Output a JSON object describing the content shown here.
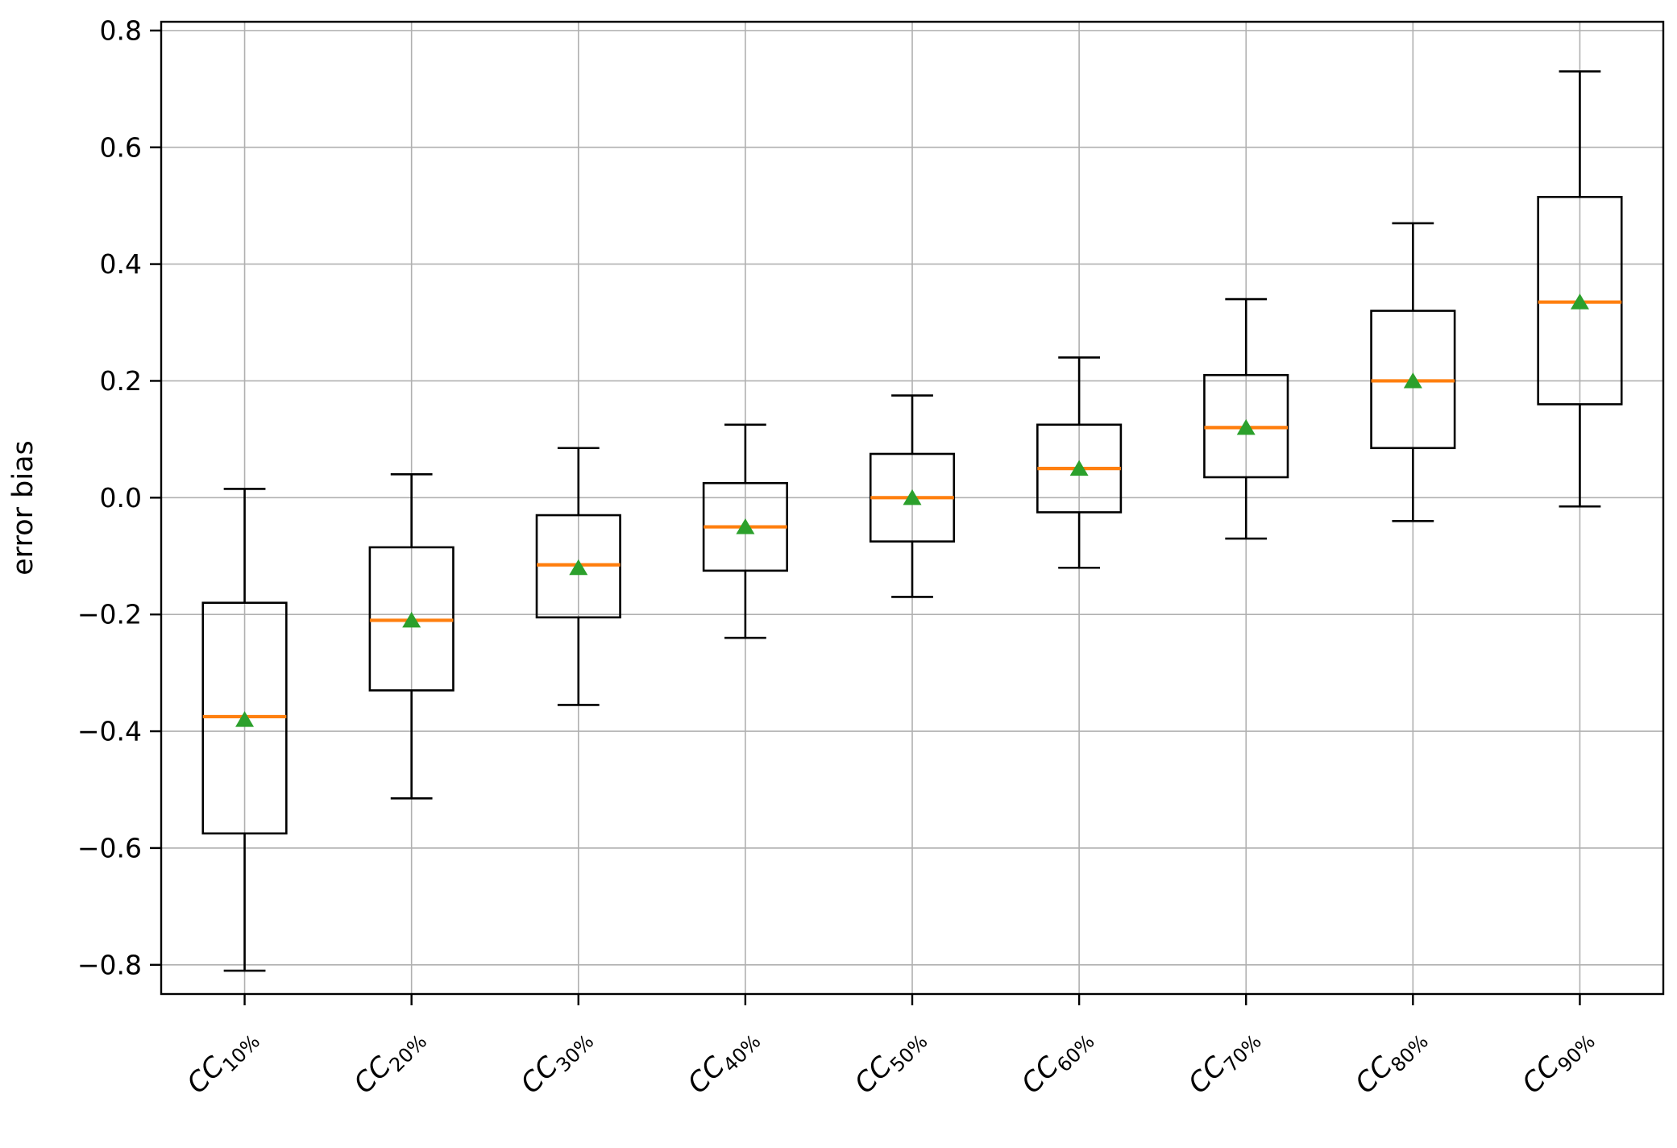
{
  "chart_data": {
    "type": "boxplot",
    "title": "",
    "xlabel": "",
    "ylabel": "error bias",
    "ylim": [
      -0.85,
      0.815
    ],
    "grid": true,
    "legend": null,
    "yticks": [
      0.8,
      0.6,
      0.4,
      0.2,
      0.0,
      -0.2,
      -0.4,
      -0.6,
      -0.8
    ],
    "ytick_labels": [
      "0.8",
      "0.6",
      "0.4",
      "0.2",
      "0.0",
      "−0.2",
      "−0.4",
      "−0.6",
      "−0.8"
    ],
    "categories": [
      {
        "base": "CC",
        "sub": "10%"
      },
      {
        "base": "CC",
        "sub": "20%"
      },
      {
        "base": "CC",
        "sub": "30%"
      },
      {
        "base": "CC",
        "sub": "40%"
      },
      {
        "base": "CC",
        "sub": "50%"
      },
      {
        "base": "CC",
        "sub": "60%"
      },
      {
        "base": "CC",
        "sub": "70%"
      },
      {
        "base": "CC",
        "sub": "80%"
      },
      {
        "base": "CC",
        "sub": "90%"
      }
    ],
    "boxes": [
      {
        "whislo": -0.81,
        "q1": -0.575,
        "med": -0.375,
        "q3": -0.18,
        "whishi": 0.015,
        "mean": -0.38
      },
      {
        "whislo": -0.515,
        "q1": -0.33,
        "med": -0.21,
        "q3": -0.085,
        "whishi": 0.04,
        "mean": -0.21
      },
      {
        "whislo": -0.355,
        "q1": -0.205,
        "med": -0.115,
        "q3": -0.03,
        "whishi": 0.085,
        "mean": -0.12
      },
      {
        "whislo": -0.24,
        "q1": -0.125,
        "med": -0.05,
        "q3": 0.025,
        "whishi": 0.125,
        "mean": -0.05
      },
      {
        "whislo": -0.17,
        "q1": -0.075,
        "med": 0.0,
        "q3": 0.075,
        "whishi": 0.175,
        "mean": 0.0
      },
      {
        "whislo": -0.12,
        "q1": -0.025,
        "med": 0.05,
        "q3": 0.125,
        "whishi": 0.24,
        "mean": 0.05
      },
      {
        "whislo": -0.07,
        "q1": 0.035,
        "med": 0.12,
        "q3": 0.21,
        "whishi": 0.34,
        "mean": 0.12
      },
      {
        "whislo": -0.04,
        "q1": 0.085,
        "med": 0.2,
        "q3": 0.32,
        "whishi": 0.47,
        "mean": 0.2
      },
      {
        "whislo": -0.015,
        "q1": 0.16,
        "med": 0.335,
        "q3": 0.515,
        "whishi": 0.73,
        "mean": 0.335
      }
    ],
    "colors": {
      "median": "#ff7f0e",
      "mean_marker": "#2ca02c",
      "box_line": "#000000",
      "grid": "#b0b0b0",
      "background": "#ffffff",
      "text": "#000000"
    }
  }
}
